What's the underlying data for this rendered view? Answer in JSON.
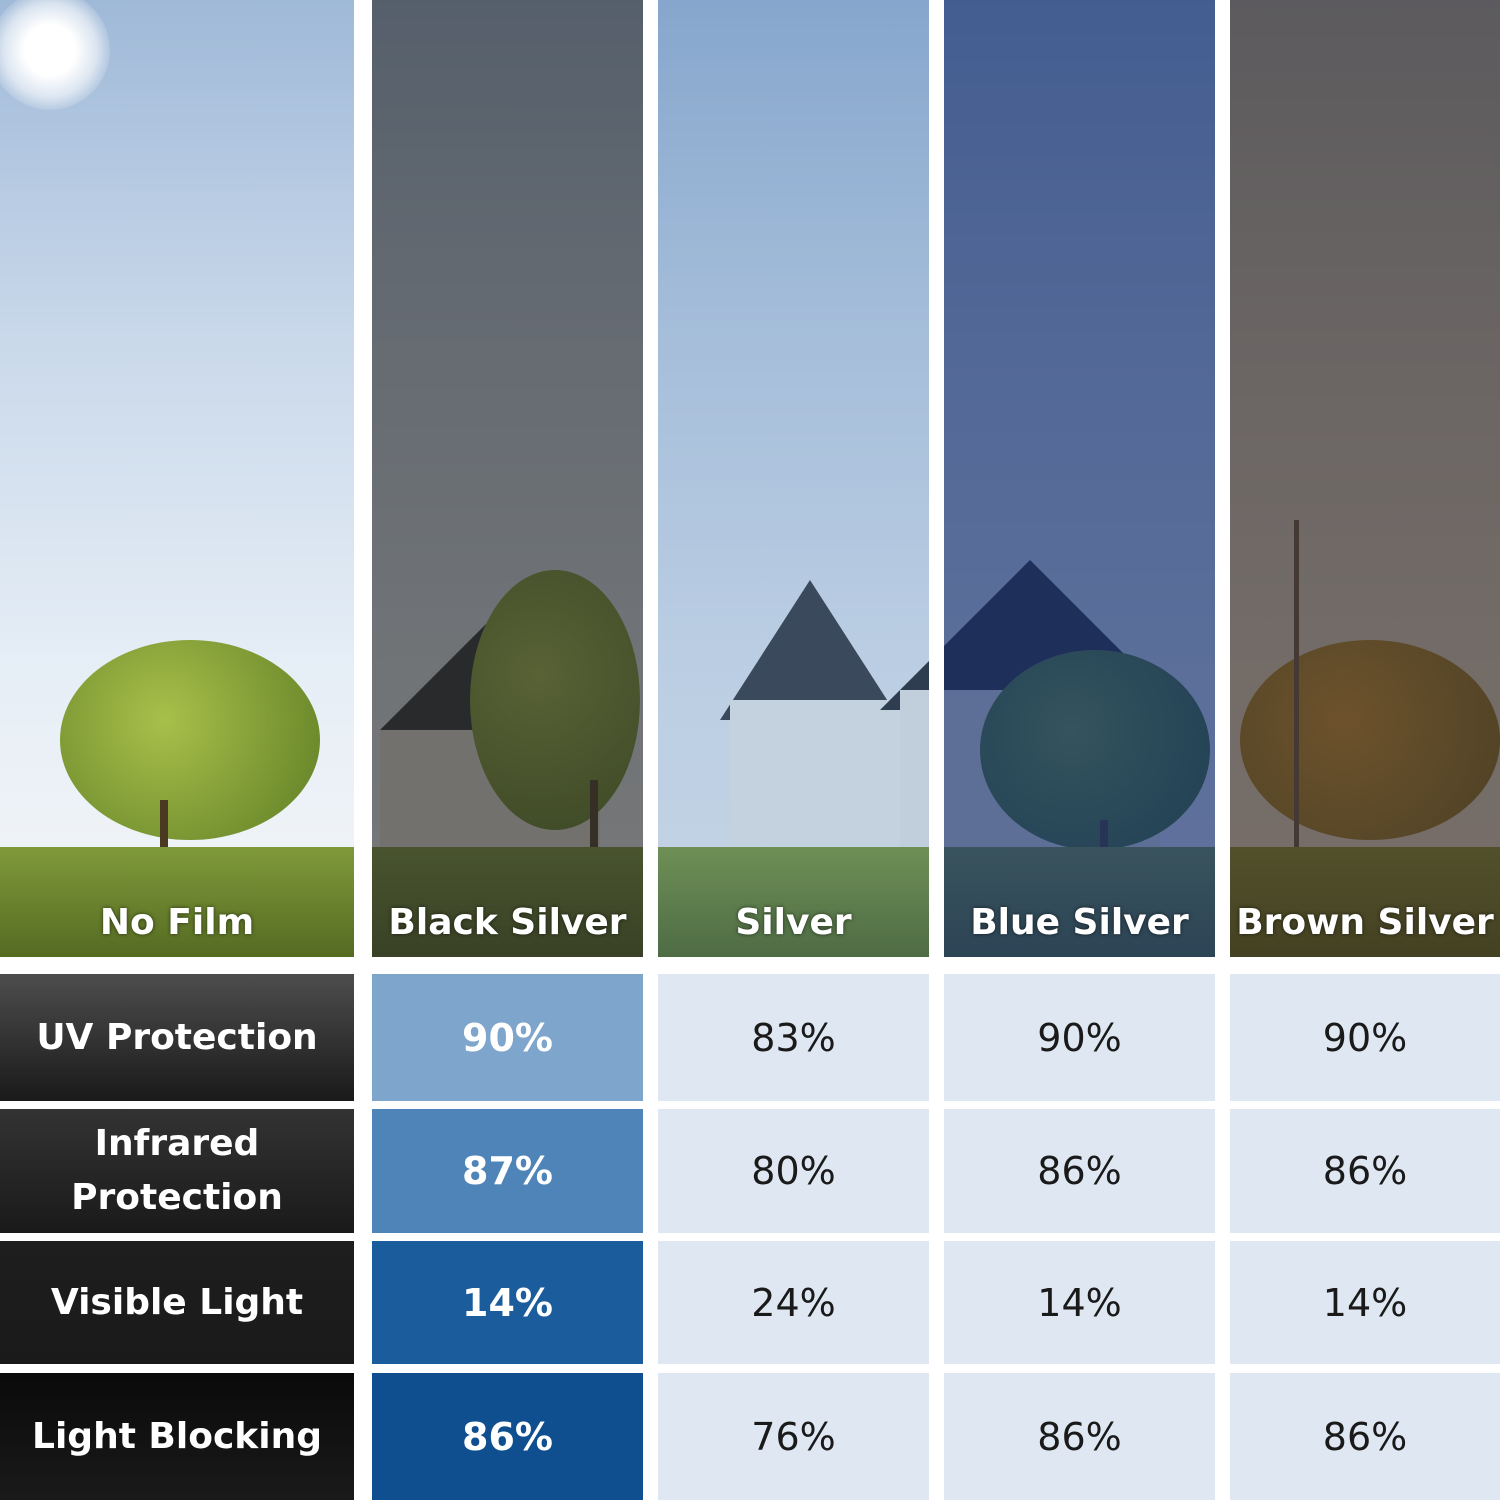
{
  "columns": [
    {
      "name": "No Film",
      "tint": "rgba(0,0,0,0)"
    },
    {
      "name": "Black Silver",
      "tint": "rgba(40,40,40,0.62)"
    },
    {
      "name": "Silver",
      "tint": "rgba(60,110,170,0.25)"
    },
    {
      "name": "Blue Silver",
      "tint": "rgba(25,50,110,0.68)"
    },
    {
      "name": "Brown Silver",
      "tint": "rgba(60,45,35,0.68)"
    }
  ],
  "rows": [
    {
      "label": "UV Protection",
      "values": [
        "90%",
        "83%",
        "90%",
        "90%"
      ],
      "head_bg": "#4d4d4d",
      "accent_bg": "#7ea5cb"
    },
    {
      "label": "Infrared Protection",
      "values": [
        "87%",
        "80%",
        "86%",
        "86%"
      ],
      "head_bg": "#333333",
      "accent_bg": "#4f84b8"
    },
    {
      "label": "Visible Light",
      "values": [
        "14%",
        "24%",
        "14%",
        "14%"
      ],
      "head_bg": "#1e1e1e",
      "accent_bg": "#1b5c9c"
    },
    {
      "label": "Light Blocking",
      "values": [
        "86%",
        "76%",
        "86%",
        "86%"
      ],
      "head_bg": "#0a0a0a",
      "accent_bg": "#0f4f90"
    }
  ]
}
